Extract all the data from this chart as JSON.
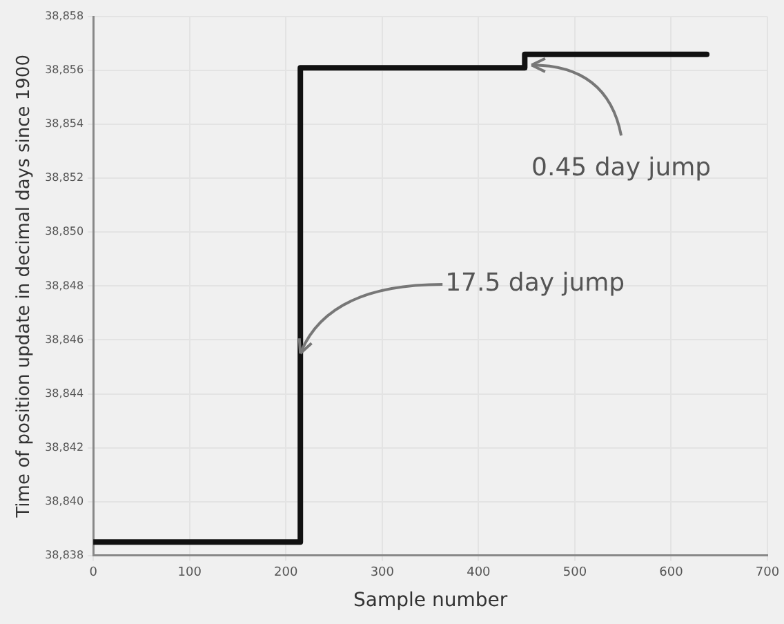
{
  "chart_data": {
    "type": "step",
    "xlabel": "Sample number",
    "ylabel": "Time of position update in decimal days since 1900",
    "x": [
      0,
      215,
      448,
      637
    ],
    "series": [
      {
        "color": "#111111",
        "values": [
          38838.5,
          38856.1,
          38856.6,
          38856.6
        ]
      }
    ],
    "xlim": [
      0,
      700
    ],
    "xticks": [
      0,
      100,
      200,
      300,
      400,
      500,
      600,
      700
    ],
    "ylim": [
      38838,
      38858
    ],
    "yticks": [
      {
        "value": 38838,
        "label": "38,838"
      },
      {
        "value": 38840,
        "label": "38,840"
      },
      {
        "value": 38842,
        "label": "38,842"
      },
      {
        "value": 38844,
        "label": "38,844"
      },
      {
        "value": 38846,
        "label": "38,846"
      },
      {
        "value": 38848,
        "label": "38,848"
      },
      {
        "value": 38850,
        "label": "38,850"
      },
      {
        "value": 38852,
        "label": "38,852"
      },
      {
        "value": 38854,
        "label": "38,854"
      },
      {
        "value": 38856,
        "label": "38,856"
      },
      {
        "value": 38858,
        "label": "38,858"
      }
    ],
    "grid": true,
    "legend": false,
    "marker": "none",
    "line_style": "solid",
    "annotations": [
      {
        "text": "17.5 day jump",
        "x": 215,
        "y": 38845.5
      },
      {
        "text": "0.45 day jump",
        "x": 455,
        "y": 38856.2
      }
    ]
  }
}
